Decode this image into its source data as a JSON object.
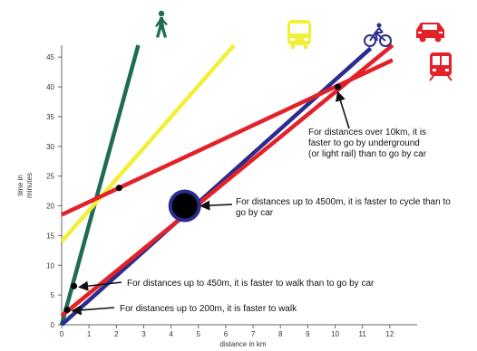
{
  "chart_data": {
    "type": "line",
    "xlabel": "distance in km",
    "ylabel_lines": [
      "time in",
      "minutes"
    ],
    "xlim": [
      0,
      13
    ],
    "ylim": [
      0,
      47
    ],
    "x_ticks": [
      0,
      1,
      2,
      3,
      4,
      5,
      6,
      7,
      8,
      9,
      10,
      11,
      12
    ],
    "y_ticks": [
      0,
      5,
      10,
      15,
      20,
      25,
      30,
      35,
      40,
      45
    ],
    "grid": false,
    "series": [
      {
        "icon": "walking-person-icon",
        "color": "#1f6b55",
        "x": [
          0,
          2.8
        ],
        "y": [
          0,
          47
        ]
      },
      {
        "icon": "bus-icon",
        "color": "#f2ef38",
        "x": [
          0,
          6.3
        ],
        "y": [
          14,
          47
        ]
      },
      {
        "icon": "bicycle-icon",
        "color": "#2b2d8e",
        "x": [
          0,
          11.3
        ],
        "y": [
          0,
          46.5
        ]
      },
      {
        "icon": "car-icon",
        "color": "#e32128",
        "x": [
          0,
          12.1
        ],
        "y": [
          1.5,
          47
        ]
      },
      {
        "icon": "underground-train-icon",
        "color": "#e32128",
        "x": [
          0,
          12.1
        ],
        "y": [
          18.5,
          44.5
        ]
      }
    ],
    "intersection_points": [
      {
        "x": 0.2,
        "y": 2.5,
        "size": "small"
      },
      {
        "x": 0.45,
        "y": 6.5,
        "size": "small"
      },
      {
        "x": 2.1,
        "y": 23,
        "size": "small"
      },
      {
        "x": 10.1,
        "y": 40,
        "size": "small"
      },
      {
        "x": 4.5,
        "y": 20,
        "size": "large"
      }
    ],
    "annotations": [
      {
        "text_lines": [
          "For distances up to 200m, it is faster to walk"
        ],
        "point_x": 0.2,
        "point_y": 2.5
      },
      {
        "text_lines": [
          "For distances up to 450m, it is faster to walk than to go by car"
        ],
        "point_x": 0.45,
        "point_y": 6.5
      },
      {
        "text_lines": [
          "For distances up to 4500m, it is faster to cycle than to",
          "go by car"
        ],
        "point_x": 4.5,
        "point_y": 20
      },
      {
        "text_lines": [
          "For distances over 10km, it is",
          "faster to go by underground",
          "(or light rail) than to go by car"
        ],
        "point_x": 10.1,
        "point_y": 40
      }
    ]
  }
}
